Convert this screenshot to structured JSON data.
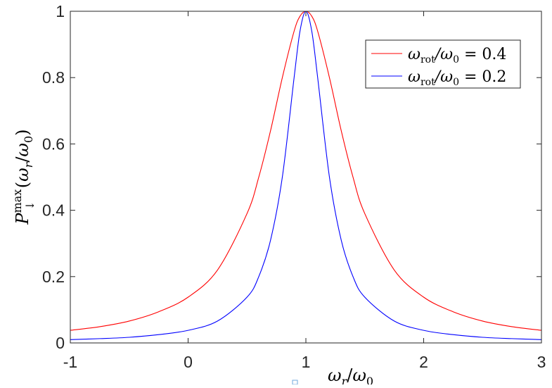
{
  "chart_data": {
    "type": "line",
    "title": "",
    "xlabel": "ω_r/ω_0",
    "ylabel": "P_↓^max(ω_r/ω_0)",
    "xlim": [
      -1,
      3
    ],
    "ylim": [
      0,
      1
    ],
    "x_ticks": [
      "-1",
      "0",
      "1",
      "2",
      "3"
    ],
    "y_ticks": [
      "0",
      "0.2",
      "0.4",
      "0.6",
      "0.8",
      "1"
    ],
    "grid": false,
    "legend_position": "top-right",
    "colors": {
      "series_1": "#ff0000",
      "series_2": "#0000ff",
      "axes": "#262626"
    },
    "x": [
      -1,
      -0.75,
      -0.5,
      -0.25,
      0,
      0.25,
      0.5,
      0.6,
      0.7,
      0.8,
      0.9,
      0.95,
      1,
      1.05,
      1.1,
      1.2,
      1.3,
      1.4,
      1.5,
      1.75,
      2,
      2.25,
      2.5,
      2.75,
      3
    ],
    "series": [
      {
        "name": "ω_rot/ω_0 = 0.4",
        "legend_label": {
          "lhs_main": "ω",
          "lhs_sub": "rot",
          "mid": "/ω",
          "mid_sub": "0",
          "rhs": " = 0.4"
        },
        "values": [
          0.038,
          0.049,
          0.066,
          0.094,
          0.138,
          0.22,
          0.39,
          0.5,
          0.64,
          0.8,
          0.94,
          0.985,
          1.0,
          0.985,
          0.94,
          0.8,
          0.64,
          0.5,
          0.39,
          0.22,
          0.138,
          0.094,
          0.066,
          0.049,
          0.038
        ]
      },
      {
        "name": "ω_rot/ω_0 = 0.2",
        "legend_label": {
          "lhs_main": "ω",
          "lhs_sub": "rot",
          "mid": "/ω",
          "mid_sub": "0",
          "rhs": " = 0.2"
        },
        "values": [
          0.01,
          0.013,
          0.017,
          0.025,
          0.038,
          0.066,
          0.138,
          0.2,
          0.31,
          0.5,
          0.8,
          0.94,
          1.0,
          0.94,
          0.8,
          0.5,
          0.31,
          0.2,
          0.138,
          0.066,
          0.038,
          0.025,
          0.017,
          0.013,
          0.01
        ]
      }
    ]
  }
}
